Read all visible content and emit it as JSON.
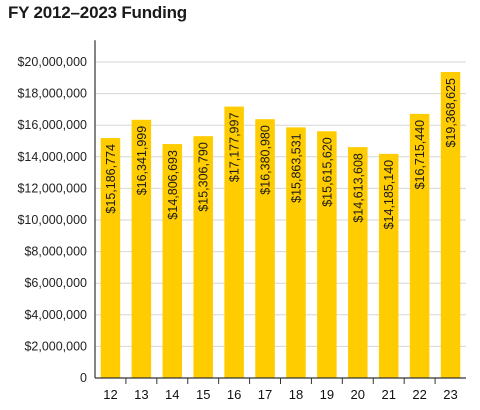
{
  "chart_data": {
    "type": "bar",
    "title": "FY 2012–2023 Funding",
    "xlabel": "",
    "ylabel": "",
    "categories": [
      "12",
      "13",
      "14",
      "15",
      "16",
      "17",
      "18",
      "19",
      "20",
      "21",
      "22",
      "23"
    ],
    "values": [
      15186774,
      16341999,
      14806693,
      15306790,
      17177997,
      16380980,
      15863531,
      15615620,
      14613608,
      14185140,
      16715440,
      19368625
    ],
    "data_labels": [
      "$15,186,774",
      "$16,341,999",
      "$14,806,693",
      "$15,306,790",
      "$17,177,997",
      "$16,380,980",
      "$15,863,531",
      "$15,615,620",
      "$14,613,608",
      "$14,185,140",
      "$16,715,440",
      "$19,368,625"
    ],
    "ylim": [
      0,
      21000000
    ],
    "yticks": [
      0,
      2000000,
      4000000,
      6000000,
      8000000,
      10000000,
      12000000,
      14000000,
      16000000,
      18000000,
      20000000
    ],
    "ytick_labels": [
      "0",
      "$2,000,000",
      "$4,000,000",
      "$6,000,000",
      "$8,000,000",
      "$10,000,000",
      "$12,000,000",
      "$14,000,000",
      "$16,000,000",
      "$18,000,000",
      "$20,000,000"
    ],
    "grid": true,
    "bar_color": "#FFCC00",
    "grid_color": "#d6d6d6",
    "axis_color": "#333333"
  }
}
